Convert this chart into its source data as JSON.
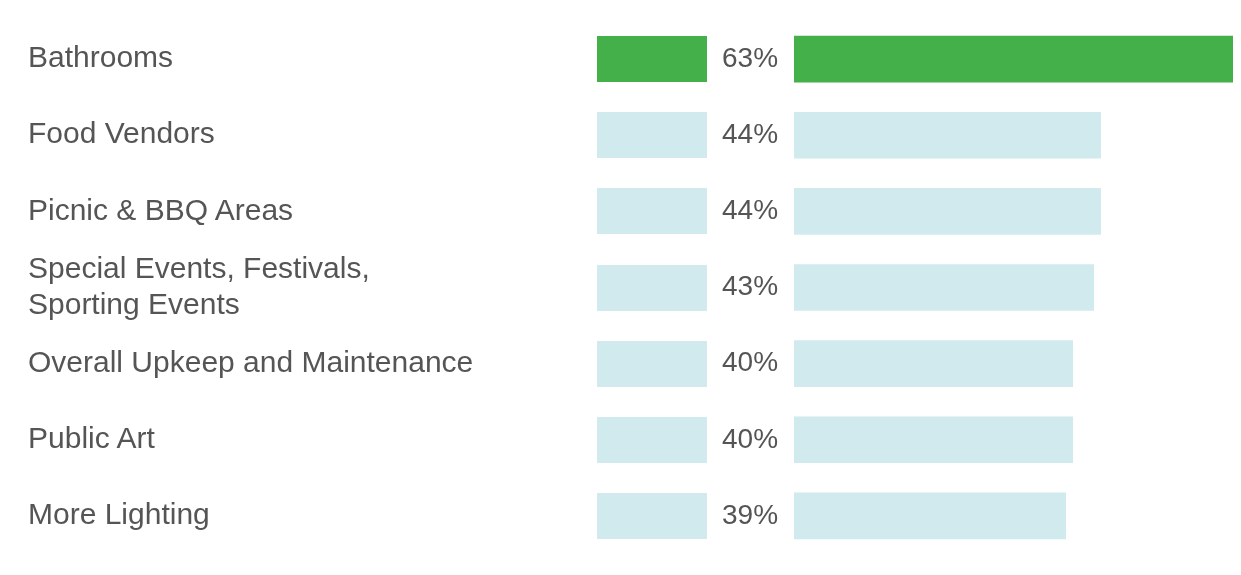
{
  "chart_data": {
    "type": "bar",
    "orientation": "horizontal",
    "categories": [
      "Bathrooms",
      "Food Vendors",
      "Picnic & BBQ Areas",
      "Special Events, Festivals, Sporting Events",
      "Overall Upkeep and Maintenance",
      "Public Art",
      "More Lighting"
    ],
    "values": [
      63,
      44,
      44,
      43,
      40,
      40,
      39
    ],
    "colors": [
      "#43b04a",
      "#d0eaee",
      "#d0eaee",
      "#d0eaee",
      "#d0eaee",
      "#d0eaee",
      "#d0eaee"
    ],
    "value_labels": [
      "63%",
      "44%",
      "44%",
      "43%",
      "40%",
      "40%",
      "39%"
    ],
    "grid": false,
    "legend": false
  }
}
